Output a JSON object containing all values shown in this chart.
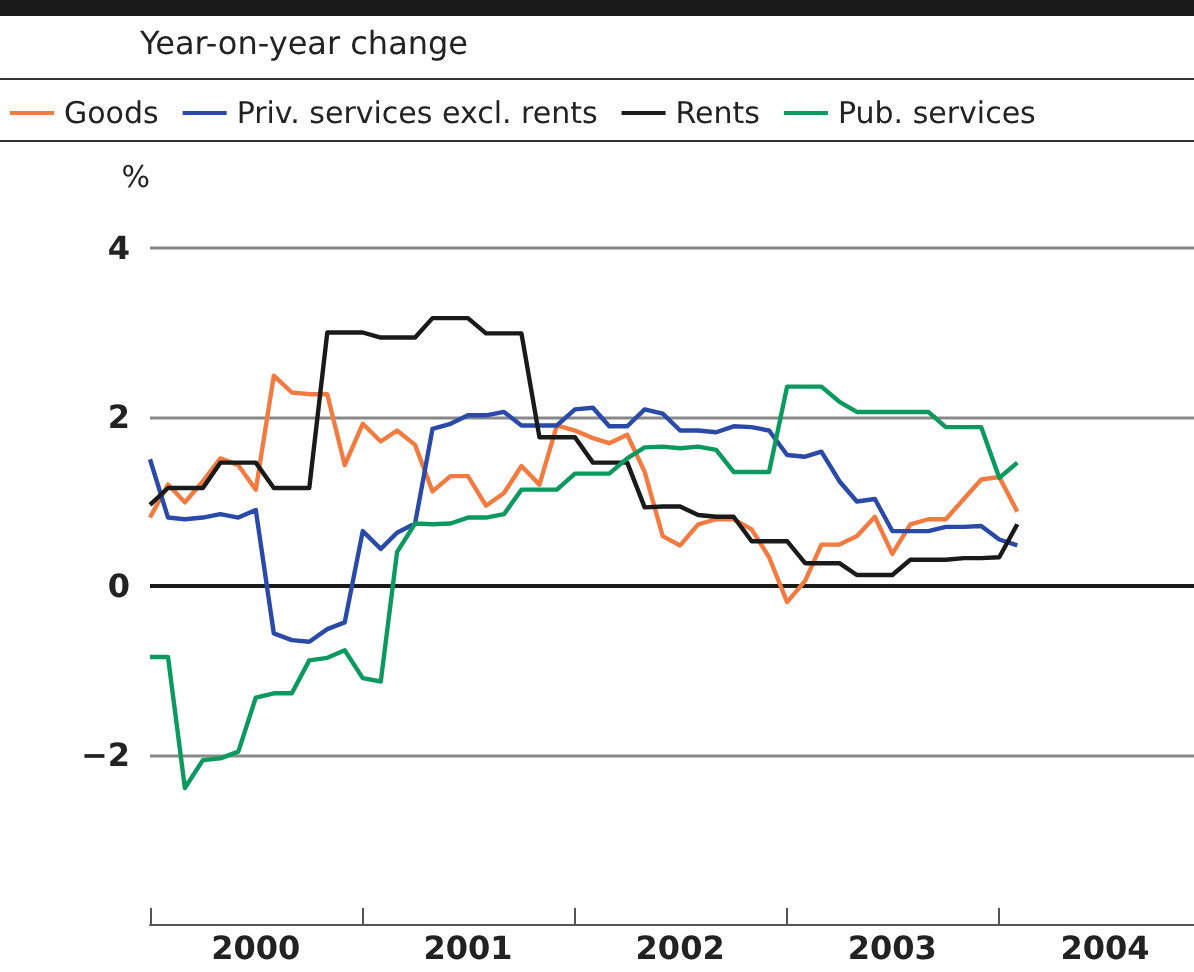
{
  "chart_data": {
    "type": "line",
    "subtitle": "Year-on-year change",
    "ylabel": "%",
    "x": [
      "2000-01",
      "2000-02",
      "2000-03",
      "2000-04",
      "2000-05",
      "2000-06",
      "2000-07",
      "2000-08",
      "2000-09",
      "2000-10",
      "2000-11",
      "2000-12",
      "2001-01",
      "2001-02",
      "2001-03",
      "2001-04",
      "2001-05",
      "2001-06",
      "2001-07",
      "2001-08",
      "2001-09",
      "2001-10",
      "2001-11",
      "2001-12",
      "2002-01",
      "2002-02",
      "2002-03",
      "2002-04",
      "2002-05",
      "2002-06",
      "2002-07",
      "2002-08",
      "2002-09",
      "2002-10",
      "2002-11",
      "2002-12",
      "2003-01",
      "2003-02",
      "2003-03",
      "2003-04",
      "2003-05",
      "2003-06",
      "2003-07",
      "2003-08",
      "2003-09",
      "2003-10",
      "2003-11",
      "2003-12",
      "2004-01",
      "2004-02"
    ],
    "series": [
      {
        "name": "Goods",
        "color": "#f47b3f",
        "values": [
          0.81,
          1.2,
          0.99,
          1.24,
          1.51,
          1.43,
          1.14,
          2.49,
          2.29,
          2.27,
          2.27,
          1.43,
          1.92,
          1.71,
          1.84,
          1.67,
          1.12,
          1.3,
          1.3,
          0.95,
          1.1,
          1.42,
          1.2,
          1.9,
          1.84,
          1.75,
          1.69,
          1.79,
          1.35,
          0.59,
          0.48,
          0.73,
          0.79,
          0.79,
          0.67,
          0.34,
          -0.19,
          0.06,
          0.49,
          0.49,
          0.59,
          0.82,
          0.38,
          0.73,
          0.79,
          0.79,
          1.03,
          1.26,
          1.29,
          0.88
        ]
      },
      {
        "name": "Priv. services excl. rents",
        "color": "#2a4aa8",
        "values": [
          1.5,
          0.81,
          0.79,
          0.81,
          0.85,
          0.81,
          0.9,
          -0.56,
          -0.64,
          -0.66,
          -0.51,
          -0.43,
          0.65,
          0.44,
          0.63,
          0.74,
          1.86,
          1.92,
          2.02,
          2.02,
          2.06,
          1.9,
          1.9,
          1.9,
          2.09,
          2.11,
          1.89,
          1.89,
          2.09,
          2.04,
          1.84,
          1.84,
          1.82,
          1.89,
          1.88,
          1.84,
          1.55,
          1.53,
          1.59,
          1.24,
          1.0,
          1.03,
          0.65,
          0.65,
          0.65,
          0.7,
          0.7,
          0.71,
          0.55,
          0.48
        ]
      },
      {
        "name": "Rents",
        "color": "#1a1a1a",
        "values": [
          0.96,
          1.16,
          1.16,
          1.16,
          1.46,
          1.46,
          1.46,
          1.16,
          1.16,
          1.16,
          3.0,
          3.0,
          3.0,
          2.94,
          2.94,
          2.94,
          3.17,
          3.17,
          3.17,
          2.99,
          2.99,
          2.99,
          1.76,
          1.76,
          1.76,
          1.46,
          1.46,
          1.46,
          0.93,
          0.94,
          0.94,
          0.84,
          0.82,
          0.82,
          0.53,
          0.53,
          0.53,
          0.27,
          0.27,
          0.27,
          0.13,
          0.13,
          0.13,
          0.31,
          0.31,
          0.31,
          0.33,
          0.33,
          0.34,
          0.73
        ]
      },
      {
        "name": "Pub. services",
        "color": "#0a9a60",
        "values": [
          -0.84,
          -0.84,
          -2.39,
          -2.06,
          -2.04,
          -1.96,
          -1.32,
          -1.27,
          -1.27,
          -0.88,
          -0.85,
          -0.76,
          -1.09,
          -1.13,
          0.4,
          0.74,
          0.73,
          0.74,
          0.81,
          0.81,
          0.85,
          1.14,
          1.14,
          1.14,
          1.33,
          1.33,
          1.33,
          1.51,
          1.64,
          1.65,
          1.63,
          1.65,
          1.61,
          1.35,
          1.35,
          1.35,
          2.36,
          2.36,
          2.36,
          2.18,
          2.06,
          2.06,
          2.06,
          2.06,
          2.06,
          1.88,
          1.88,
          1.88,
          1.28,
          1.46
        ]
      }
    ],
    "xlim": [
      "2000-01-01",
      "2004-12-01"
    ],
    "xticks": [
      {
        "value": "2000-01-01",
        "label": null
      },
      {
        "value": "2000-07-01",
        "label": "2000"
      },
      {
        "value": "2001-01-01",
        "label": null
      },
      {
        "value": "2001-07-01",
        "label": "2001"
      },
      {
        "value": "2002-01-01",
        "label": null
      },
      {
        "value": "2002-07-01",
        "label": "2002"
      },
      {
        "value": "2003-01-01",
        "label": null
      },
      {
        "value": "2003-07-01",
        "label": "2003"
      },
      {
        "value": "2004-01-01",
        "label": null
      },
      {
        "value": "2004-07-01",
        "label": "2004"
      }
    ],
    "ylim": [
      -4,
      4
    ],
    "yticks": [
      -2,
      0,
      2,
      4
    ],
    "ref_lines": [
      {
        "axis": "y",
        "value": 0,
        "color": "#1a1a1a"
      }
    ],
    "grid": "y",
    "legend": "top",
    "marker": "none",
    "line_style": "solid"
  }
}
